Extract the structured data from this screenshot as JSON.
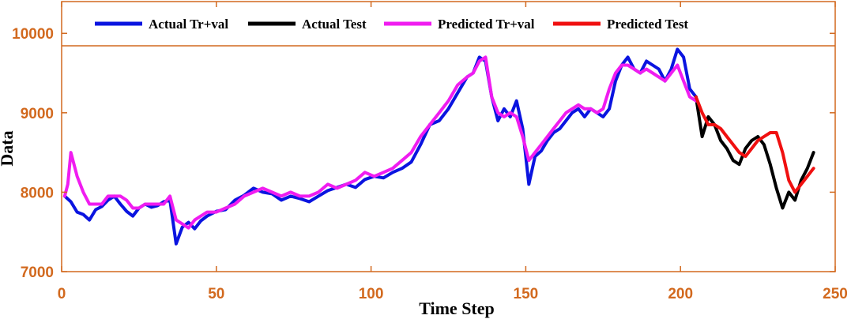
{
  "chart_data": {
    "type": "line",
    "xlabel": "Time Step",
    "ylabel": "Data",
    "xlim": [
      0,
      250
    ],
    "ylim": [
      7000,
      10400
    ],
    "x_ticks": [
      "0",
      "50",
      "100",
      "150",
      "200",
      "250"
    ],
    "y_ticks": [
      "7000",
      "8000",
      "9000",
      "10000"
    ],
    "legend_position": "top",
    "series": [
      {
        "name": "Actual Tr+val",
        "color": "#0A14E0",
        "x": [
          1,
          3,
          5,
          7,
          9,
          11,
          13,
          15,
          17,
          19,
          21,
          23,
          25,
          27,
          29,
          31,
          33,
          35,
          37,
          39,
          41,
          43,
          45,
          47,
          50,
          53,
          56,
          59,
          62,
          65,
          68,
          71,
          74,
          77,
          80,
          83,
          86,
          89,
          92,
          95,
          98,
          101,
          104,
          107,
          110,
          113,
          116,
          119,
          122,
          125,
          128,
          131,
          133,
          135,
          137,
          139,
          141,
          143,
          145,
          147,
          149,
          151,
          153,
          155,
          157,
          159,
          161,
          163,
          165,
          167,
          169,
          171,
          173,
          175,
          177,
          179,
          181,
          183,
          185,
          187,
          189,
          191,
          193,
          195,
          197,
          199,
          201,
          203,
          205
        ],
        "values": [
          7950,
          7880,
          7750,
          7720,
          7650,
          7780,
          7820,
          7900,
          7950,
          7850,
          7760,
          7700,
          7800,
          7850,
          7810,
          7830,
          7880,
          7900,
          7350,
          7560,
          7620,
          7540,
          7640,
          7700,
          7760,
          7780,
          7900,
          7960,
          8050,
          8000,
          7980,
          7900,
          7950,
          7920,
          7880,
          7950,
          8020,
          8060,
          8100,
          8060,
          8160,
          8200,
          8180,
          8250,
          8300,
          8380,
          8600,
          8850,
          8900,
          9050,
          9250,
          9450,
          9500,
          9700,
          9650,
          9200,
          8900,
          9050,
          8950,
          9150,
          8800,
          8100,
          8450,
          8520,
          8650,
          8750,
          8800,
          8900,
          9000,
          9050,
          8950,
          9050,
          9000,
          8950,
          9050,
          9400,
          9600,
          9700,
          9550,
          9500,
          9650,
          9600,
          9550,
          9400,
          9550,
          9800,
          9700,
          9300,
          9200
        ]
      },
      {
        "name": "Actual Test",
        "color": "#000000",
        "x": [
          205,
          207,
          209,
          211,
          213,
          215,
          217,
          219,
          221,
          223,
          225,
          227,
          229,
          231,
          233,
          235,
          237,
          239,
          241,
          243
        ],
        "values": [
          9200,
          8700,
          8950,
          8850,
          8650,
          8550,
          8400,
          8350,
          8550,
          8650,
          8700,
          8600,
          8350,
          8050,
          7800,
          8000,
          7900,
          8150,
          8300,
          8500
        ]
      },
      {
        "name": "Predicted Tr+val",
        "color": "#F01CF0",
        "x": [
          1,
          2,
          3,
          5,
          7,
          9,
          11,
          13,
          15,
          17,
          19,
          21,
          23,
          25,
          27,
          29,
          31,
          33,
          35,
          37,
          39,
          41,
          43,
          45,
          47,
          50,
          53,
          56,
          59,
          62,
          65,
          68,
          71,
          74,
          77,
          80,
          83,
          86,
          89,
          92,
          95,
          98,
          101,
          104,
          107,
          110,
          113,
          116,
          119,
          122,
          125,
          128,
          131,
          133,
          135,
          137,
          139,
          141,
          143,
          145,
          147,
          149,
          151,
          153,
          155,
          157,
          159,
          161,
          163,
          165,
          167,
          169,
          171,
          173,
          175,
          177,
          179,
          181,
          183,
          185,
          187,
          189,
          191,
          193,
          195,
          197,
          199,
          201,
          203,
          205
        ],
        "values": [
          7950,
          8100,
          8500,
          8200,
          8000,
          7850,
          7850,
          7850,
          7950,
          7950,
          7950,
          7900,
          7800,
          7800,
          7850,
          7850,
          7850,
          7850,
          7950,
          7650,
          7600,
          7550,
          7650,
          7700,
          7750,
          7750,
          7800,
          7850,
          7950,
          8000,
          8050,
          8000,
          7950,
          8000,
          7950,
          7950,
          8000,
          8100,
          8050,
          8100,
          8150,
          8250,
          8200,
          8250,
          8300,
          8400,
          8500,
          8700,
          8850,
          9000,
          9150,
          9350,
          9450,
          9500,
          9650,
          9700,
          9200,
          9000,
          8950,
          9000,
          8950,
          8700,
          8400,
          8500,
          8600,
          8700,
          8800,
          8900,
          9000,
          9050,
          9100,
          9050,
          9050,
          9000,
          9050,
          9300,
          9500,
          9600,
          9600,
          9550,
          9500,
          9550,
          9500,
          9450,
          9400,
          9500,
          9600,
          9400,
          9200,
          9150
        ]
      },
      {
        "name": "Predicted Test",
        "color": "#F01010",
        "x": [
          205,
          207,
          209,
          211,
          213,
          215,
          217,
          219,
          221,
          223,
          225,
          227,
          229,
          231,
          233,
          235,
          237,
          239,
          241,
          243
        ],
        "values": [
          9200,
          9000,
          8850,
          8850,
          8800,
          8700,
          8600,
          8500,
          8450,
          8550,
          8650,
          8700,
          8750,
          8750,
          8500,
          8150,
          8000,
          8100,
          8200,
          8300
        ]
      }
    ]
  }
}
